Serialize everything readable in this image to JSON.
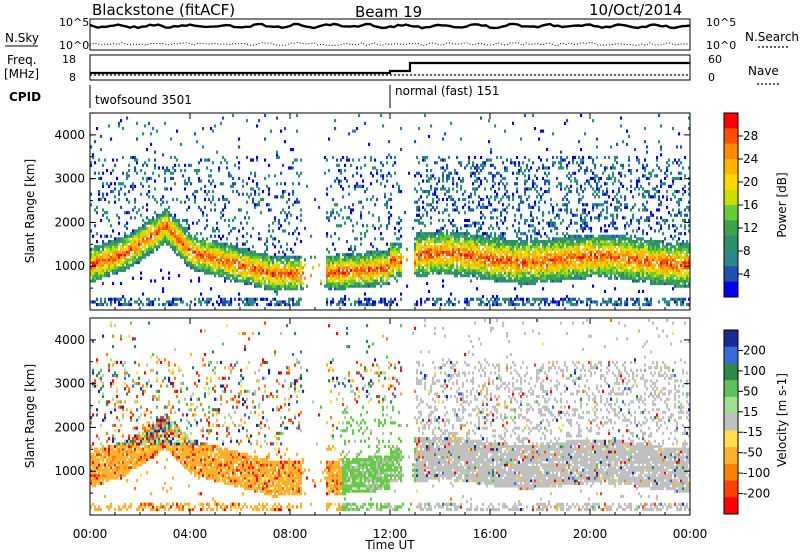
{
  "header": {
    "station": "Blackstone (fitACF)",
    "beam": "Beam 19",
    "date": "10/Oct/2014"
  },
  "left_labels": {
    "nsky": "N.Sky",
    "freq_line1": "Freq.",
    "freq_line2": "[MHz]",
    "cpid": "CPID"
  },
  "right_labels": {
    "nsearch": "N.Search",
    "nave": "Nave"
  },
  "nsky_ticks": [
    "10^5",
    "10^0"
  ],
  "nsearch_ticks": [
    "10^5",
    "10^0"
  ],
  "freq_ticks": [
    "18",
    "8"
  ],
  "nave_ticks": [
    "60",
    "0"
  ],
  "cpid_segments": [
    {
      "label": "twofsound 3501",
      "start_hour": 0
    },
    {
      "label": "normal (fast) 151",
      "start_hour": 12
    }
  ],
  "colorbars": {
    "power": {
      "title": "Power [dB]",
      "ticks": [
        "28",
        "24",
        "20",
        "16",
        "12",
        "8",
        "4"
      ],
      "colors": [
        "#ff0000",
        "#ff4d00",
        "#ff8c00",
        "#ffb300",
        "#ffd800",
        "#ccdd00",
        "#66cc33",
        "#3aa64a",
        "#2f8f6a",
        "#2a8a8a",
        "#1f4fb0",
        "#0000ee"
      ]
    },
    "velocity": {
      "title": "Velocity [m s-1]",
      "ticks": [
        "200",
        "100",
        "50",
        "15",
        "-15",
        "-50",
        "-100",
        "-200"
      ],
      "colors": [
        "#1a2a9a",
        "#3a6ad8",
        "#2a8a4a",
        "#60c060",
        "#a0e090",
        "#c0c0c0",
        "#ffe04a",
        "#ffb030",
        "#ff8000",
        "#ff4000",
        "#ff0000"
      ]
    }
  },
  "chart_data": [
    {
      "type": "heatmap",
      "name": "power",
      "ylabel": "Slant Range [km]",
      "yticks": [
        "4000",
        "3000",
        "2000",
        "1000"
      ],
      "ylim": [
        0,
        4500
      ],
      "xlim_hours": [
        0,
        24
      ],
      "xticks": [
        "00:00",
        "04:00",
        "08:00",
        "12:00",
        "16:00",
        "20:00",
        "00:00"
      ],
      "xlabel": "",
      "colorbar_range_db": [
        0,
        32
      ]
    },
    {
      "type": "heatmap",
      "name": "velocity",
      "ylabel": "Slant Range [km]",
      "yticks": [
        "4000",
        "3000",
        "2000",
        "1000"
      ],
      "ylim": [
        0,
        4500
      ],
      "xlim_hours": [
        0,
        24
      ],
      "xticks": [
        "00:00",
        "04:00",
        "08:00",
        "12:00",
        "16:00",
        "20:00",
        "00:00"
      ],
      "xlabel": "Time UT",
      "colorbar_range_ms": [
        -250,
        250
      ]
    }
  ]
}
